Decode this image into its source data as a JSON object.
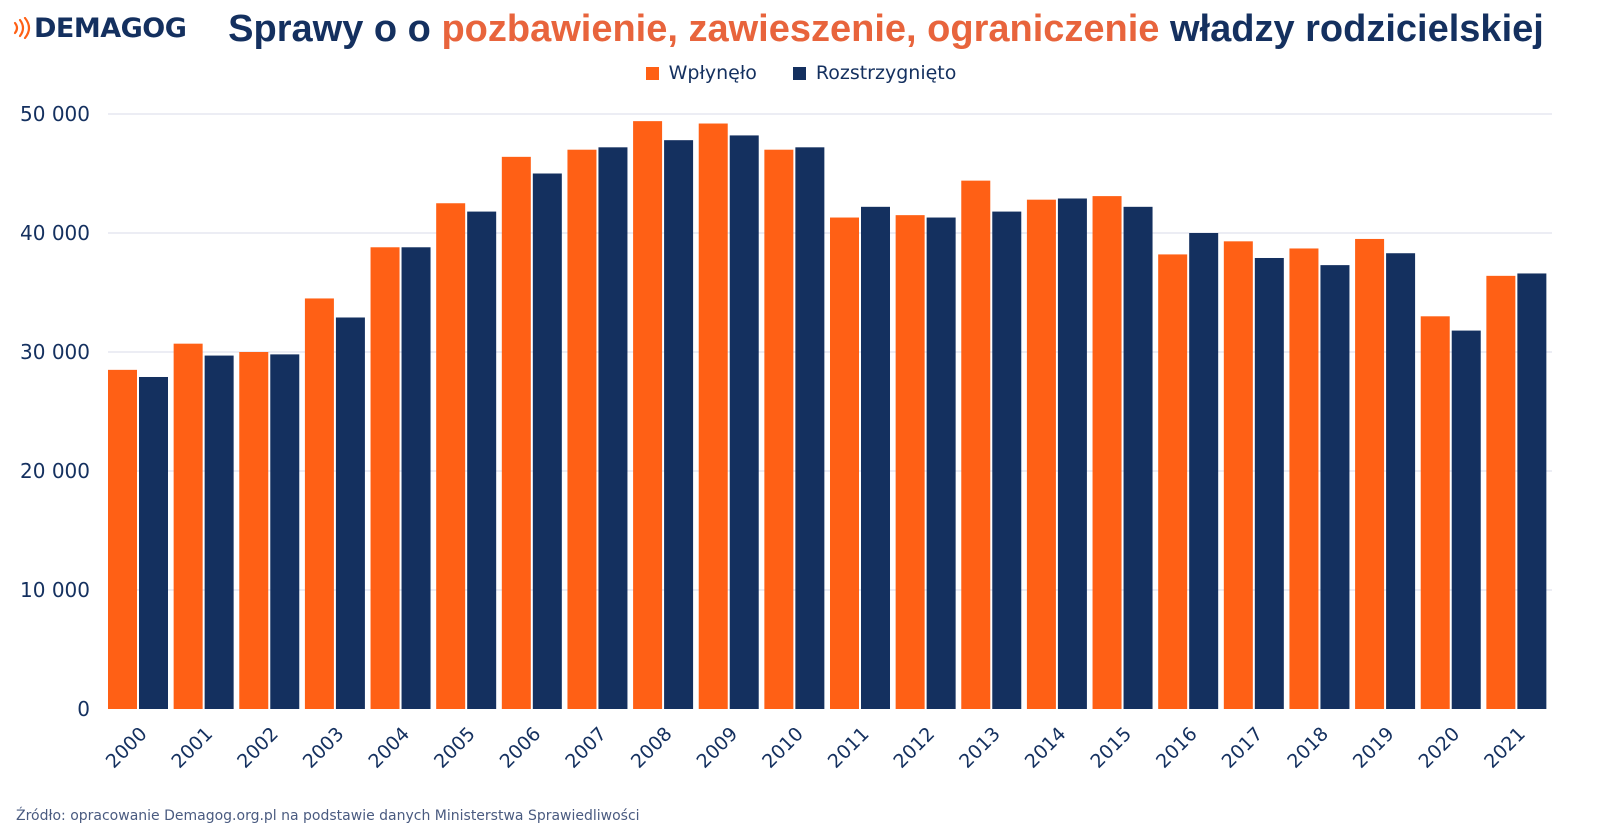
{
  "brand": {
    "logo_text": "DEMAGOG",
    "logo_icon": "sound-waves-icon",
    "logo_icon_color": "#ff6015"
  },
  "header": {
    "title_part1": "Sprawy o o ",
    "title_highlight": "pozbawienie, zawieszenie, ograniczenie",
    "title_part2": " władzy rodzicielskiej"
  },
  "colors": {
    "wplynelo": "#ff6015",
    "rozstrzygnieto": "#14305f",
    "title_highlight": "#e8643c",
    "text": "#14305f",
    "grid": "#d8dbea"
  },
  "chart_data": {
    "type": "bar",
    "title": "Sprawy o o pozbawienie, zawieszenie, ograniczenie władzy rodzicielskiej",
    "xlabel": "",
    "ylabel": "",
    "ylim": [
      0,
      50000
    ],
    "yticks": [
      0,
      10000,
      20000,
      30000,
      40000,
      50000
    ],
    "ytick_labels": [
      "0",
      "10 000",
      "20 000",
      "30 000",
      "40 000",
      "50 000"
    ],
    "grid": true,
    "legend_position": "top-center",
    "categories": [
      "2000",
      "2001",
      "2002",
      "2003",
      "2004",
      "2005",
      "2006",
      "2007",
      "2008",
      "2009",
      "2010",
      "2011",
      "2012",
      "2013",
      "2014",
      "2015",
      "2016",
      "2017",
      "2018",
      "2019",
      "2020",
      "2021"
    ],
    "series": [
      {
        "name": "Wpłynęło",
        "color": "#ff6015",
        "values": [
          28500,
          30700,
          30000,
          34500,
          38800,
          42500,
          46400,
          47000,
          49400,
          49200,
          47000,
          41300,
          41500,
          44400,
          42800,
          43100,
          38200,
          39300,
          38700,
          39500,
          33000,
          36400
        ]
      },
      {
        "name": "Rozstrzygnięto",
        "color": "#14305f",
        "values": [
          27900,
          29700,
          29800,
          32900,
          38800,
          41800,
          45000,
          47200,
          47800,
          48200,
          47200,
          42200,
          41300,
          41800,
          42900,
          42200,
          40000,
          37900,
          37300,
          38300,
          31800,
          36600
        ]
      }
    ]
  },
  "footer": {
    "source": "Źródło: opracowanie Demagog.org.pl na podstawie danych Ministerstwa Sprawiedliwości"
  }
}
